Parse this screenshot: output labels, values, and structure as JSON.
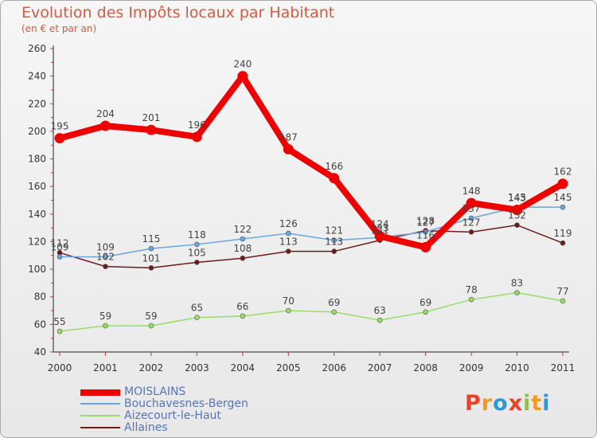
{
  "page": {
    "title": "Evolution des Impôts locaux par Habitant",
    "subtitle": "(en € et par an)",
    "logo_letters": [
      "P",
      "r",
      "o",
      "x",
      "i",
      "t",
      "i"
    ],
    "logo_colors": [
      "#e8402a",
      "#f29a1c",
      "#2a9ad7",
      "#e8402a",
      "#8cc63e",
      "#f29a1c",
      "#2a9ad7"
    ]
  },
  "chart_data": {
    "type": "line",
    "title": "Evolution des Impôts locaux par Habitant",
    "subtitle": "(en € et par an)",
    "xlabel": "",
    "ylabel": "",
    "x": [
      2000,
      2001,
      2002,
      2003,
      2004,
      2005,
      2006,
      2007,
      2008,
      2009,
      2010,
      2011
    ],
    "ylim": [
      40,
      260
    ],
    "yticks": [
      40,
      60,
      80,
      100,
      120,
      140,
      160,
      180,
      200,
      220,
      240,
      260
    ],
    "grid": false,
    "legend_position": "bottom-left",
    "series": [
      {
        "name": "Allaines",
        "color": "#6b1c1c",
        "values": [
          112,
          102,
          101,
          105,
          108,
          113,
          113,
          121,
          128,
          127,
          132,
          119
        ]
      },
      {
        "name": "Aizecourt-le-Haut",
        "color": "#99dd66",
        "values": [
          55,
          59,
          59,
          65,
          66,
          70,
          69,
          63,
          69,
          78,
          83,
          77
        ]
      },
      {
        "name": "Bouchavesnes-Bergen",
        "color": "#6aa6dc",
        "values": [
          109,
          109,
          115,
          118,
          122,
          126,
          121,
          123,
          127,
          137,
          145,
          145
        ]
      },
      {
        "name": "MOISLAINS",
        "color": "#ee0000",
        "values": [
          195,
          204,
          201,
          196,
          240,
          187,
          166,
          124,
          116,
          148,
          143,
          162
        ]
      }
    ],
    "legend_order": [
      "MOISLAINS",
      "Bouchavesnes-Bergen",
      "Aizecourt-le-Haut",
      "Allaines"
    ]
  }
}
